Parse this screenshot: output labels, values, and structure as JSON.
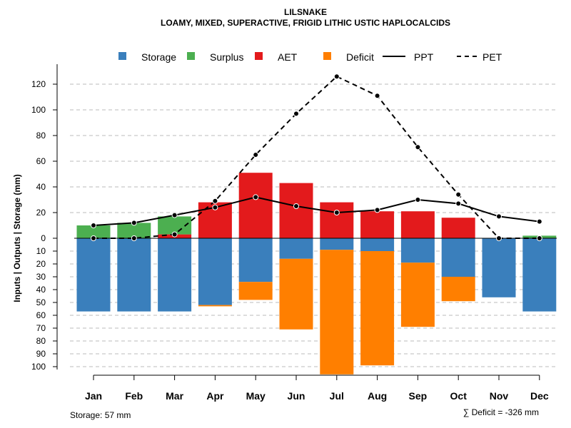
{
  "colors": {
    "storage": "#3a7fbc",
    "surplus": "#4caf50",
    "aet": "#e31a1c",
    "deficit": "#ff7f00",
    "line": "#000000",
    "grid": "#bbbbbb"
  },
  "chart_data": {
    "type": "bar",
    "title": "LILSNAKE",
    "subtitle": "LOAMY, MIXED, SUPERACTIVE, FRIGID LITHIC USTIC HAPLOCALCIDS",
    "ylabel": "Inputs | Outputs | Storage     (mm)",
    "legend": [
      "Storage",
      "Surplus",
      "AET",
      "Deficit",
      "PPT",
      "PET"
    ],
    "categories": [
      "Jan",
      "Feb",
      "Mar",
      "Apr",
      "May",
      "Jun",
      "Jul",
      "Aug",
      "Sep",
      "Oct",
      "Nov",
      "Dec"
    ],
    "upper_ylim": [
      0,
      130
    ],
    "upper_ticks": [
      "0",
      "20",
      "40",
      "60",
      "80",
      "100",
      "120"
    ],
    "lower_ylim": [
      0,
      105
    ],
    "lower_ticks": [
      "10",
      "20",
      "30",
      "40",
      "50",
      "60",
      "70",
      "80",
      "90",
      "100"
    ],
    "series": [
      {
        "name": "AET",
        "values": [
          0,
          0,
          3,
          28,
          51,
          43,
          28,
          21,
          21,
          16,
          0,
          0
        ]
      },
      {
        "name": "Surplus",
        "values": [
          10,
          12,
          14,
          0,
          0,
          0,
          0,
          0,
          0,
          0,
          0,
          2
        ]
      },
      {
        "name": "Storage",
        "values": [
          57,
          57,
          57,
          52,
          34,
          16,
          9,
          10,
          19,
          30,
          46,
          57
        ]
      },
      {
        "name": "Deficit",
        "values": [
          0,
          0,
          0,
          1,
          14,
          55,
          97,
          89,
          50,
          19,
          0,
          0
        ]
      },
      {
        "name": "PPT",
        "values": [
          10,
          12,
          18,
          24,
          32,
          25,
          20,
          22,
          30,
          27,
          17,
          13
        ]
      },
      {
        "name": "PET",
        "values": [
          0,
          0,
          3,
          29,
          65,
          97,
          126,
          111,
          71,
          34,
          0,
          0
        ]
      }
    ],
    "footer_left": "Storage: 57 mm",
    "footer_right": "∑ Deficit = -326 mm"
  }
}
